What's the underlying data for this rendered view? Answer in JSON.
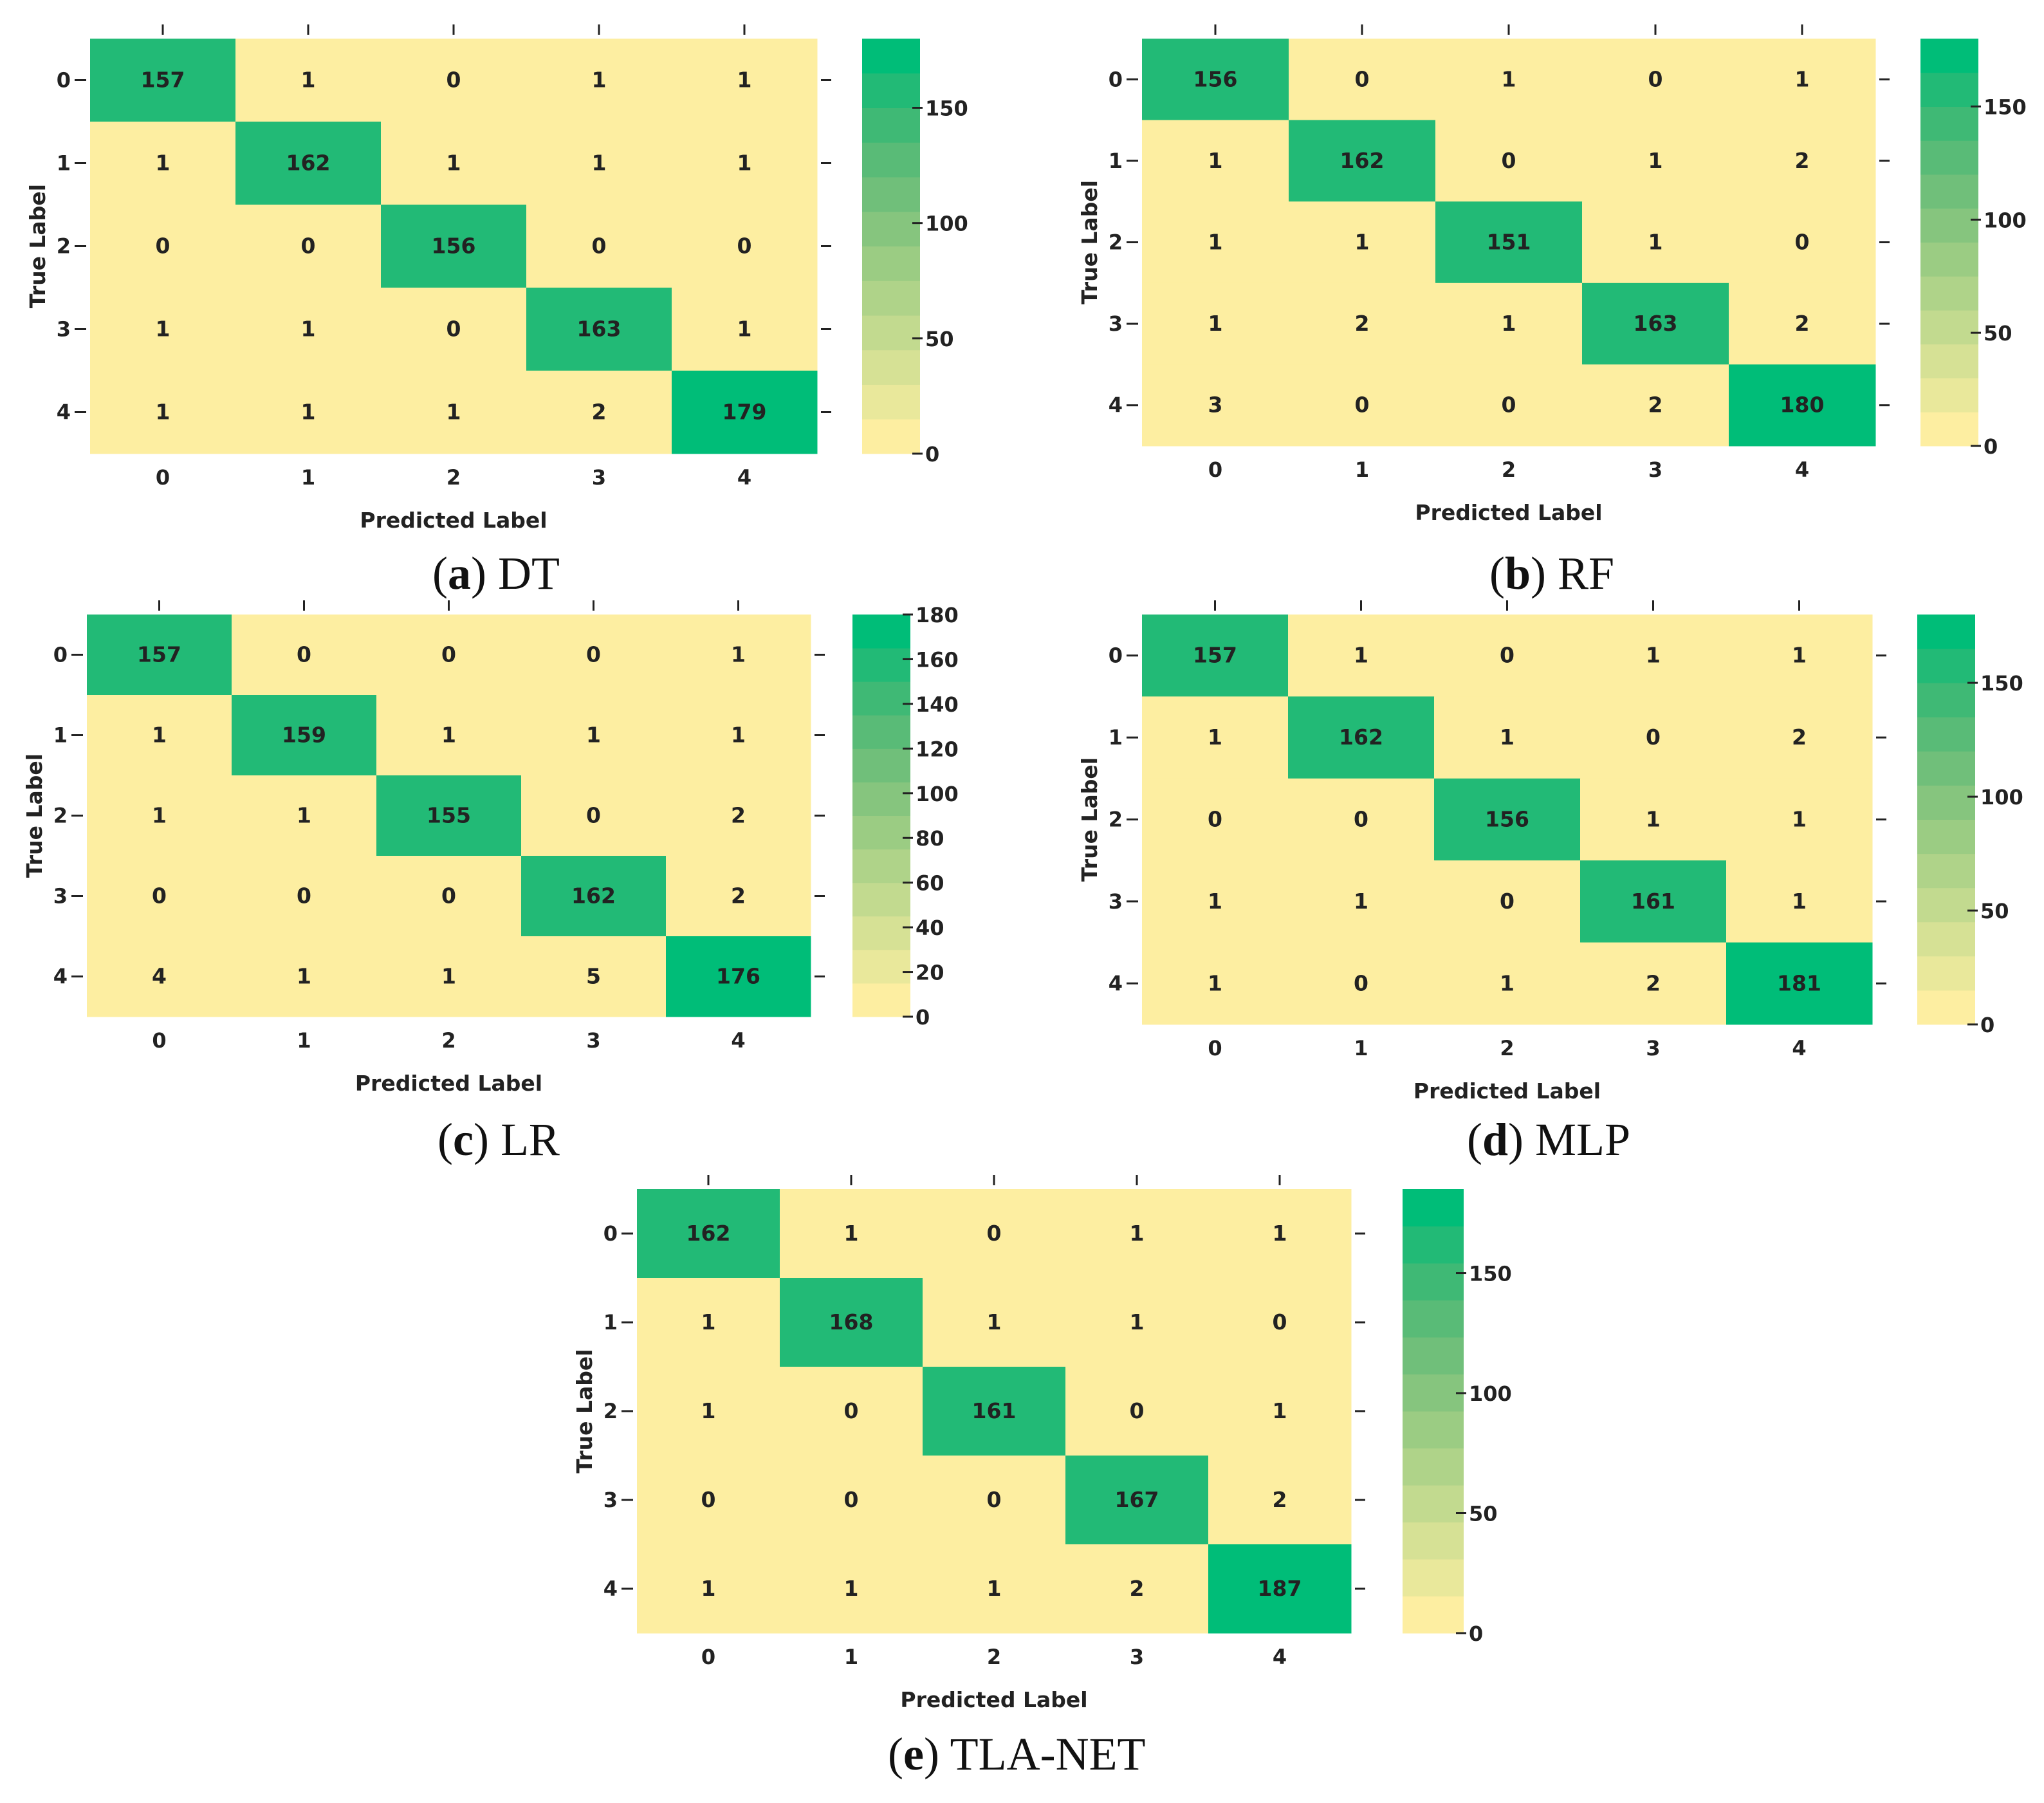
{
  "colors": {
    "low": "#fdf0a2",
    "high": "#00bd78",
    "text": "#222222",
    "colorbar_steps": [
      "#fdeea1",
      "#e9e89b",
      "#d6e195",
      "#c2da8f",
      "#afd389",
      "#9bcc83",
      "#86c57e",
      "#70bf7a",
      "#59bb77",
      "#3fb975",
      "#22ba76",
      "#00bd78"
    ]
  },
  "chart_data": [
    {
      "type": "heatmap",
      "caption_letter": "a",
      "caption_name": "DT",
      "xlabel": "Predicted Label",
      "ylabel": "True Label",
      "x_ticks": [
        "0",
        "1",
        "2",
        "3",
        "4"
      ],
      "y_ticks": [
        "0",
        "1",
        "2",
        "3",
        "4"
      ],
      "values": [
        [
          157,
          1,
          0,
          1,
          1
        ],
        [
          1,
          162,
          1,
          1,
          1
        ],
        [
          0,
          0,
          156,
          0,
          0
        ],
        [
          1,
          1,
          0,
          163,
          1
        ],
        [
          1,
          1,
          1,
          2,
          179
        ]
      ],
      "colorbar_range": [
        0,
        180
      ],
      "colorbar_ticks": [
        "0",
        "50",
        "100",
        "150"
      ]
    },
    {
      "type": "heatmap",
      "caption_letter": "b",
      "caption_name": "RF",
      "xlabel": "Predicted Label",
      "ylabel": "True Label",
      "x_ticks": [
        "0",
        "1",
        "2",
        "3",
        "4"
      ],
      "y_ticks": [
        "0",
        "1",
        "2",
        "3",
        "4"
      ],
      "values": [
        [
          156,
          0,
          1,
          0,
          1
        ],
        [
          1,
          162,
          0,
          1,
          2
        ],
        [
          1,
          1,
          151,
          1,
          0
        ],
        [
          1,
          2,
          1,
          163,
          2
        ],
        [
          3,
          0,
          0,
          2,
          180
        ]
      ],
      "colorbar_range": [
        0,
        180
      ],
      "colorbar_ticks": [
        "0",
        "50",
        "100",
        "150"
      ]
    },
    {
      "type": "heatmap",
      "caption_letter": "c",
      "caption_name": "LR",
      "xlabel": "Predicted Label",
      "ylabel": "True Label",
      "x_ticks": [
        "0",
        "1",
        "2",
        "3",
        "4"
      ],
      "y_ticks": [
        "0",
        "1",
        "2",
        "3",
        "4"
      ],
      "values": [
        [
          157,
          0,
          0,
          0,
          1
        ],
        [
          1,
          159,
          1,
          1,
          1
        ],
        [
          1,
          1,
          155,
          0,
          2
        ],
        [
          0,
          0,
          0,
          162,
          2
        ],
        [
          4,
          1,
          1,
          5,
          176
        ]
      ],
      "colorbar_range": [
        0,
        180
      ],
      "colorbar_ticks": [
        "0",
        "20",
        "40",
        "60",
        "80",
        "100",
        "120",
        "140",
        "160",
        "180"
      ]
    },
    {
      "type": "heatmap",
      "caption_letter": "d",
      "caption_name": "MLP",
      "xlabel": "Predicted Label",
      "ylabel": "True Label",
      "x_ticks": [
        "0",
        "1",
        "2",
        "3",
        "4"
      ],
      "y_ticks": [
        "0",
        "1",
        "2",
        "3",
        "4"
      ],
      "values": [
        [
          157,
          1,
          0,
          1,
          1
        ],
        [
          1,
          162,
          1,
          0,
          2
        ],
        [
          0,
          0,
          156,
          1,
          1
        ],
        [
          1,
          1,
          0,
          161,
          1
        ],
        [
          1,
          0,
          1,
          2,
          181
        ]
      ],
      "colorbar_range": [
        0,
        180
      ],
      "colorbar_ticks": [
        "0",
        "50",
        "100",
        "150"
      ]
    },
    {
      "type": "heatmap",
      "caption_letter": "e",
      "caption_name": "TLA-NET",
      "xlabel": "Predicted Label",
      "ylabel": "True Label",
      "x_ticks": [
        "0",
        "1",
        "2",
        "3",
        "4"
      ],
      "y_ticks": [
        "0",
        "1",
        "2",
        "3",
        "4"
      ],
      "values": [
        [
          162,
          1,
          0,
          1,
          1
        ],
        [
          1,
          168,
          1,
          1,
          0
        ],
        [
          1,
          0,
          161,
          0,
          1
        ],
        [
          0,
          0,
          0,
          167,
          2
        ],
        [
          1,
          1,
          1,
          2,
          187
        ]
      ],
      "colorbar_range": [
        0,
        185
      ],
      "colorbar_ticks": [
        "0",
        "50",
        "100",
        "150"
      ]
    }
  ]
}
